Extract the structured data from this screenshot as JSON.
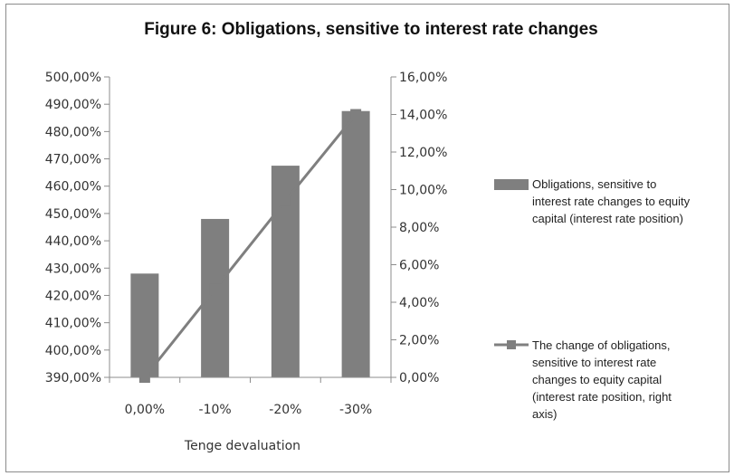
{
  "chart_data": {
    "type": "bar",
    "title": "Figure 6: Obligations, sensitive to interest rate changes",
    "xlabel": "Tenge devaluation",
    "categories": [
      "0,00%",
      "-10%",
      "-20%",
      "-30%"
    ],
    "left_axis": {
      "ylim": [
        390,
        500
      ],
      "step": 10,
      "tick_labels": [
        "390,00%",
        "400,00%",
        "410,00%",
        "420,00%",
        "430,00%",
        "440,00%",
        "450,00%",
        "460,00%",
        "470,00%",
        "480,00%",
        "490,00%",
        "500,00%"
      ]
    },
    "right_axis": {
      "ylim": [
        0,
        16
      ],
      "step": 2,
      "tick_labels": [
        "0,00%",
        "2,00%",
        "4,00%",
        "6,00%",
        "8,00%",
        "10,00%",
        "12,00%",
        "14,00%",
        "16,00%"
      ]
    },
    "series": [
      {
        "name": "Obligations, sensitive to interest rate changes to equity capital (interest rate position)",
        "legend_lines": [
          "Obligations, sensitive to",
          "interest rate changes to equity",
          "capital (interest rate position)"
        ],
        "type": "bar",
        "axis": "left",
        "values": [
          428,
          448,
          467.5,
          487.5
        ],
        "color": "#7f7f7f"
      },
      {
        "name": "The change of obligations, sensitive to interest rate changes to equity capital (interest rate position, right axis)",
        "legend_lines": [
          "The change of obligations,",
          "sensitive to interest rate",
          "changes to equity capital",
          "(interest rate position, right",
          "axis)"
        ],
        "type": "line",
        "axis": "right",
        "values": [
          0,
          4.7,
          9.4,
          14.0
        ],
        "color": "#7f7f7f",
        "marker": "square"
      }
    ],
    "grid": false,
    "legend_position": "right"
  }
}
